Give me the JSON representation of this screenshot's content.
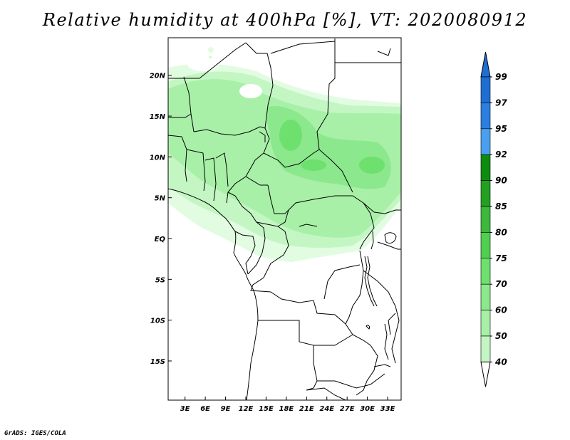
{
  "title": "Relative humidity at 400hPa [%], VT: 2020080912",
  "credit": "GrADS: IGES/COLA",
  "map": {
    "x_ticks": [
      "3E",
      "6E",
      "9E",
      "12E",
      "15E",
      "18E",
      "21E",
      "24E",
      "27E",
      "30E",
      "33E"
    ],
    "x_tick_values": [
      3,
      6,
      9,
      12,
      15,
      18,
      21,
      24,
      27,
      30,
      33
    ],
    "y_ticks": [
      "20N",
      "15N",
      "10N",
      "5N",
      "EQ",
      "5S",
      "10S",
      "15S"
    ],
    "y_tick_values": [
      20,
      15,
      10,
      5,
      0,
      -5,
      -10,
      -15
    ],
    "lon_range": [
      0.5,
      35
    ],
    "lat_range": [
      -19.8,
      24.6
    ]
  },
  "colorbar": {
    "labels": [
      "99",
      "97",
      "95",
      "92",
      "90",
      "85",
      "80",
      "75",
      "70",
      "60",
      "50",
      "40"
    ],
    "colors": [
      "#1e6fd4",
      "#2a7fe0",
      "#4aa0f0",
      "#0e8c10",
      "#21a021",
      "#3cb83c",
      "#50d050",
      "#6ee06e",
      "#8ce88c",
      "#a8f0a8",
      "#c4f6c4",
      "#e2fce2"
    ]
  },
  "humidity_colors": {
    "c40": "#e2fce2",
    "c50": "#c4f6c4",
    "c60": "#a8f0a8",
    "c70": "#8ce88c",
    "c75": "#6ee06e"
  }
}
